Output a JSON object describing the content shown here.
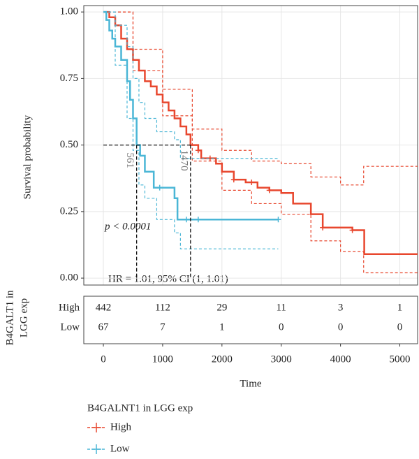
{
  "chart_data": {
    "type": "survival",
    "ylabel": "Survival probability",
    "xlabel": "Time",
    "xlim": [
      -330,
      5300
    ],
    "ylim": [
      -0.026,
      1.024
    ],
    "xticks": [
      0,
      1000,
      2000,
      3000,
      4000,
      5000
    ],
    "yticks": [
      {
        "value": 0,
        "label": "0.00"
      },
      {
        "value": 0.25,
        "label": "0.25"
      },
      {
        "value": 0.5,
        "label": "0.50"
      },
      {
        "value": 0.75,
        "label": "0.75"
      },
      {
        "value": 1,
        "label": "1.00"
      }
    ],
    "grid": true,
    "legend_title": "B4GALNT1 in LGG exp",
    "series": [
      {
        "name": "High",
        "color": "#e8472e",
        "x": [
          0,
          100,
          200,
          300,
          400,
          500,
          600,
          700,
          800,
          900,
          1000,
          1100,
          1200,
          1300,
          1400,
          1470,
          1600,
          1650,
          1900,
          2000,
          2200,
          2400,
          2600,
          2800,
          3000,
          3200,
          3500,
          3700,
          4200,
          4400,
          5300
        ],
        "values": [
          1,
          0.98,
          0.95,
          0.9,
          0.86,
          0.82,
          0.78,
          0.74,
          0.72,
          0.69,
          0.66,
          0.63,
          0.6,
          0.57,
          0.54,
          0.5,
          0.48,
          0.45,
          0.43,
          0.4,
          0.37,
          0.36,
          0.34,
          0.33,
          0.32,
          0.28,
          0.24,
          0.19,
          0.18,
          0.09,
          0.09
        ],
        "ci_x": [
          0,
          500,
          1000,
          1500,
          2000,
          2500,
          3000,
          3500,
          4000,
          4390,
          5300
        ],
        "ci_upper": [
          1,
          0.86,
          0.71,
          0.56,
          0.48,
          0.44,
          0.43,
          0.38,
          0.35,
          0.42,
          0.42
        ],
        "ci_lower": [
          1,
          0.78,
          0.61,
          0.44,
          0.33,
          0.28,
          0.24,
          0.14,
          0.1,
          0.02,
          0.02
        ],
        "censor_x": [
          1600,
          1800,
          2200,
          2500,
          2800,
          3700,
          4200
        ]
      },
      {
        "name": "Low",
        "color": "#4ab6d6",
        "x": [
          0,
          50,
          100,
          150,
          200,
          300,
          400,
          450,
          500,
          561,
          620,
          700,
          850,
          1200,
          1250,
          2950
        ],
        "values": [
          1,
          0.97,
          0.93,
          0.9,
          0.87,
          0.82,
          0.74,
          0.67,
          0.6,
          0.5,
          0.46,
          0.4,
          0.34,
          0.3,
          0.22,
          0.22
        ],
        "ci_x": [
          0,
          200,
          400,
          500,
          600,
          700,
          900,
          1200,
          1300,
          2950
        ],
        "ci_upper": [
          1,
          0.95,
          0.87,
          0.75,
          0.66,
          0.6,
          0.55,
          0.52,
          0.45,
          0.45
        ],
        "ci_lower": [
          1,
          0.8,
          0.6,
          0.48,
          0.35,
          0.3,
          0.22,
          0.17,
          0.11,
          0.11
        ],
        "censor_x": [
          950,
          1400,
          1600,
          2950
        ]
      }
    ],
    "median_level": 0.5,
    "medians": [
      561,
      1470
    ],
    "pvalue": "p < 0.0001",
    "hr_text": "HR = 1.01, 95% CI (1, 1.01)",
    "risk_table": {
      "ylabel": [
        "B4GALT1 in",
        "LGG exp"
      ],
      "row_labels": [
        "High",
        "Low"
      ],
      "rows": [
        [
          442,
          112,
          29,
          11,
          3,
          1
        ],
        [
          67,
          7,
          1,
          0,
          0,
          0
        ]
      ]
    }
  }
}
